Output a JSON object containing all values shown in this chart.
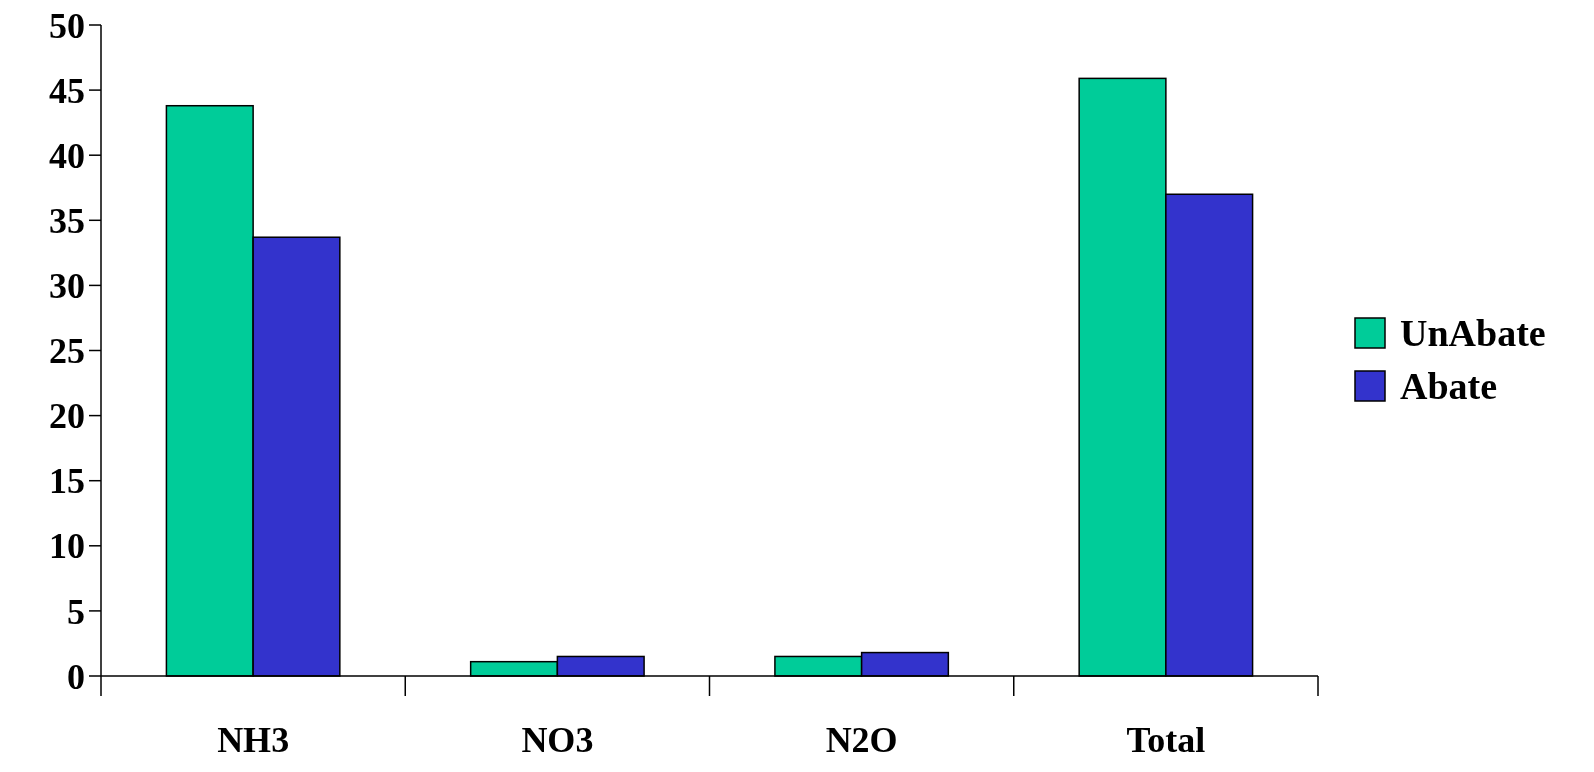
{
  "chart_data": {
    "type": "bar",
    "categories": [
      "NH3",
      "NO3",
      "N2O",
      "Total"
    ],
    "series": [
      {
        "name": "UnAbate",
        "color": "#00cc99",
        "values": [
          43.8,
          1.1,
          1.5,
          45.9
        ]
      },
      {
        "name": "Abate",
        "color": "#3333cc",
        "values": [
          33.7,
          1.5,
          1.8,
          37.0
        ]
      }
    ],
    "ylim": [
      0,
      50
    ],
    "yticks": [
      0,
      5,
      10,
      15,
      20,
      25,
      30,
      35,
      40,
      45,
      50
    ],
    "legend": "right",
    "grid": false
  }
}
